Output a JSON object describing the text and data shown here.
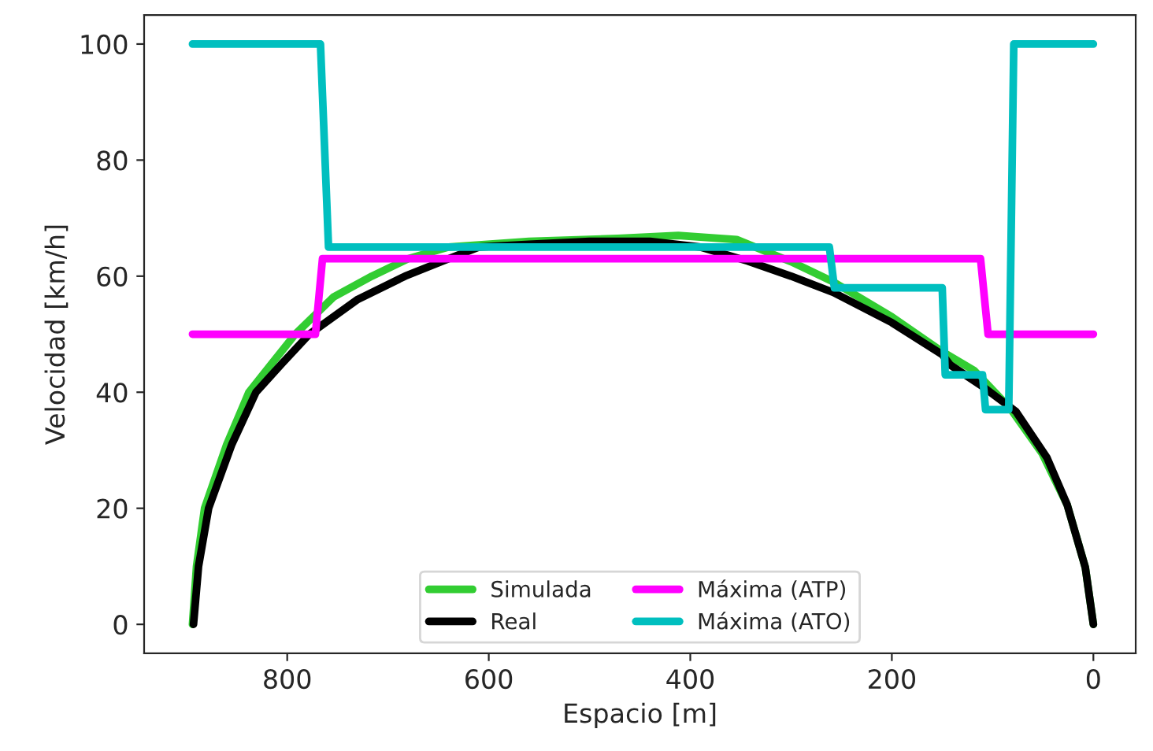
{
  "chart_data": {
    "type": "line",
    "xlabel": "Espacio [m]",
    "ylabel": "Velocidad [km/h]",
    "xlim": [
      942,
      -42
    ],
    "xticks": [
      800,
      600,
      400,
      200,
      0
    ],
    "ylim": [
      -5,
      105
    ],
    "yticks": [
      0,
      20,
      40,
      60,
      80,
      100
    ],
    "grid": false,
    "legend": "bottom",
    "marker": "none",
    "line_style": "solid",
    "series": [
      {
        "name": "Simulada",
        "color": "#32cd32",
        "x": [
          894,
          890,
          882,
          860,
          838,
          815,
          792,
          754,
          716,
          680,
          640,
          560,
          472,
          412,
          354,
          300,
          258,
          200,
          150,
          118,
          82,
          51,
          26,
          8,
          0
        ],
        "values": [
          0,
          10,
          20,
          31,
          40,
          45,
          50,
          56.4,
          60,
          63,
          65,
          66,
          66.5,
          67,
          66.3,
          62.5,
          59,
          53,
          47,
          43.7,
          37.1,
          29.5,
          20.6,
          9.8,
          0
        ]
      },
      {
        "name": "Real",
        "color": "#000000",
        "x": [
          893,
          888,
          878,
          855,
          831,
          805,
          778,
          730,
          683,
          640,
          610,
          560,
          500,
          440,
          390,
          343,
          300,
          258,
          200,
          150,
          142,
          110,
          77,
          46,
          26,
          8,
          0
        ],
        "values": [
          0,
          10,
          20,
          31,
          40,
          45,
          50,
          56,
          60,
          63,
          65,
          65.5,
          66,
          66,
          65,
          62.6,
          60,
          57.2,
          52,
          46.5,
          44.7,
          41,
          36.7,
          28.7,
          20.6,
          9.8,
          0
        ]
      },
      {
        "name": "Máxima (ATP)",
        "color": "#ff00ff",
        "x": [
          894,
          772,
          765,
          112,
          104.5,
          0
        ],
        "values": [
          50,
          50,
          63,
          63,
          50,
          50
        ]
      },
      {
        "name": "Máxima (ATO)",
        "color": "#00bfbf",
        "x": [
          894,
          767,
          759,
          262,
          257,
          150,
          147,
          110,
          107,
          84,
          79,
          0
        ],
        "values": [
          100,
          100,
          65,
          65,
          58,
          58,
          43,
          43,
          37,
          37,
          100,
          100
        ]
      }
    ]
  }
}
